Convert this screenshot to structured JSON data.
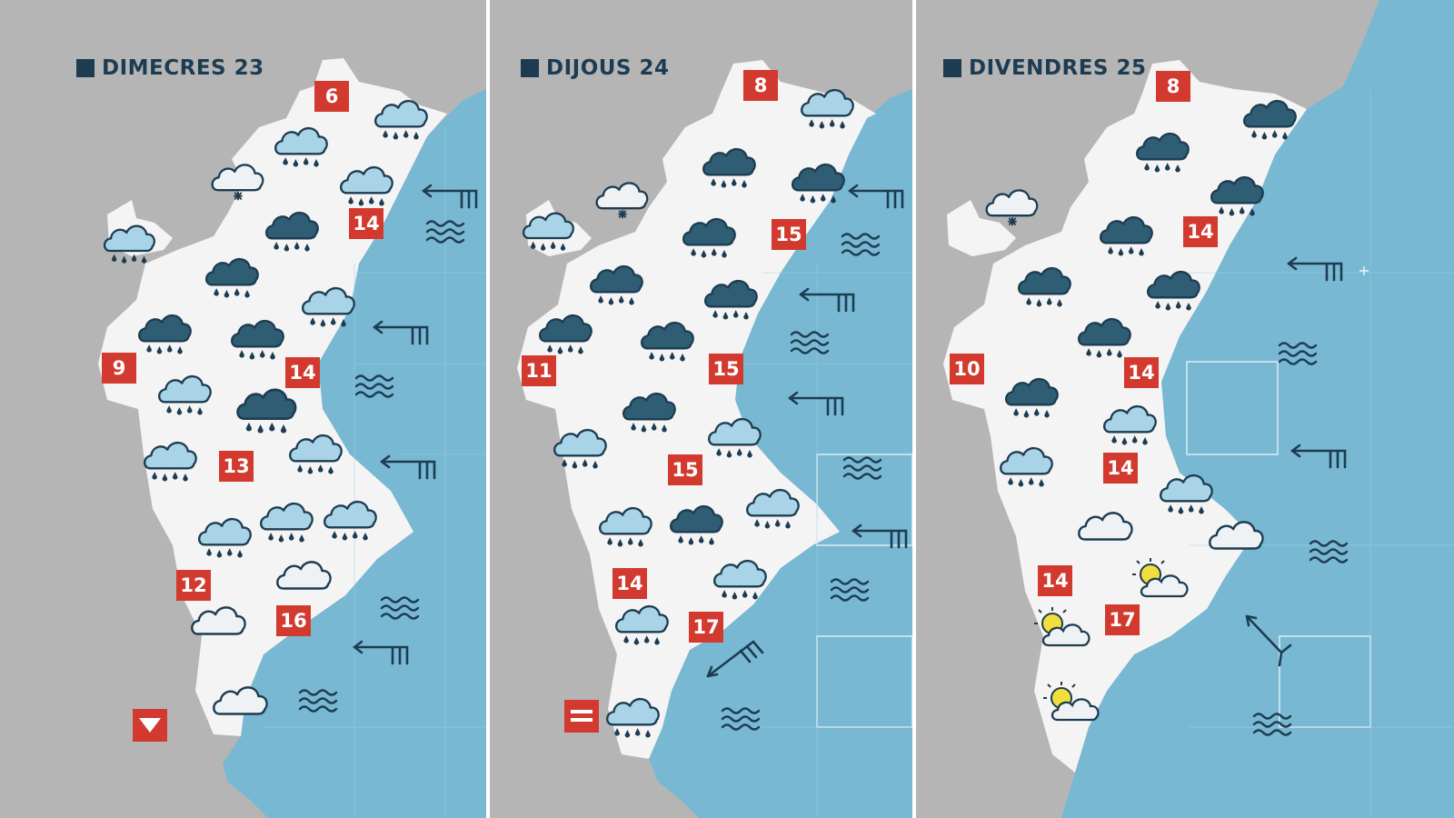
{
  "days": [
    {
      "title": "DIMECRES 23",
      "temps": [
        "6",
        "14",
        "9",
        "14",
        "13",
        "12",
        "16"
      ],
      "trend": "down-triangle-icon"
    },
    {
      "title": "DIJOUS 24",
      "temps": [
        "8",
        "15",
        "11",
        "15",
        "15",
        "14",
        "17"
      ],
      "trend": "equals-icon"
    },
    {
      "title": "DIVENDRES 25",
      "temps": [
        "8",
        "14",
        "10",
        "14",
        "14",
        "14",
        "17"
      ],
      "trend": ""
    }
  ],
  "colors": {
    "land_outside": "#b5b5b5",
    "region_land": "#f4f4f4",
    "sea": "#78b8d2",
    "temp_box": "#d33a2f",
    "heading": "#1d3c52",
    "light_cloud": "#a9d3e6",
    "dark_cloud": "#2f5e74",
    "pale_cloud": "#eef2f5",
    "sun": "#f2de3c"
  },
  "icons": [
    "rain-cloud-icon",
    "heavy-rain-cloud-icon",
    "cloud-icon",
    "snow-cloud-icon",
    "sun-cloud-icon",
    "wind-arrow-icon",
    "waves-icon"
  ]
}
